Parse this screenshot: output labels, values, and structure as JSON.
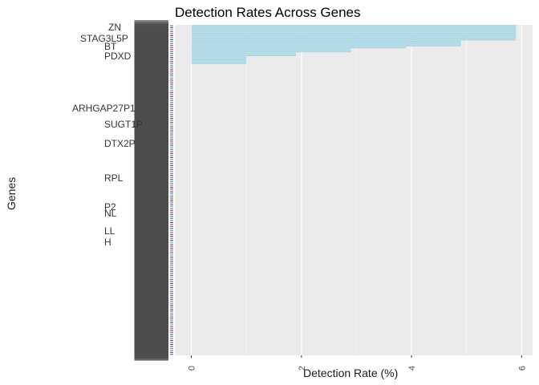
{
  "chart_data": {
    "type": "bar",
    "orientation": "horizontal",
    "title": "Detection Rates Across Genes",
    "xlabel": "Detection Rate (%)",
    "ylabel": "Genes",
    "xlim": [
      -0.3,
      6.2
    ],
    "x_ticks": [
      "0",
      "2",
      "4",
      "6"
    ],
    "grid": true,
    "background": "#ebebeb",
    "bar_color": "#add8e6",
    "visible_gene_labels": [
      "ZN",
      "STAG3L5P",
      "BT",
      "PDXD",
      "ARHGAP27P1",
      "SUGT1P",
      "DTX2P",
      "RPL",
      "P2",
      "NL",
      "LL",
      "H"
    ],
    "bar_groups": [
      {
        "count": 8,
        "value": 5.9
      },
      {
        "count": 3,
        "value": 4.9
      },
      {
        "count": 1,
        "value": 3.9
      },
      {
        "count": 2,
        "value": 2.9
      },
      {
        "count": 2,
        "value": 1.9
      },
      {
        "count": 4,
        "value": 1.0
      },
      {
        "count": 148,
        "value": 0
      }
    ]
  }
}
